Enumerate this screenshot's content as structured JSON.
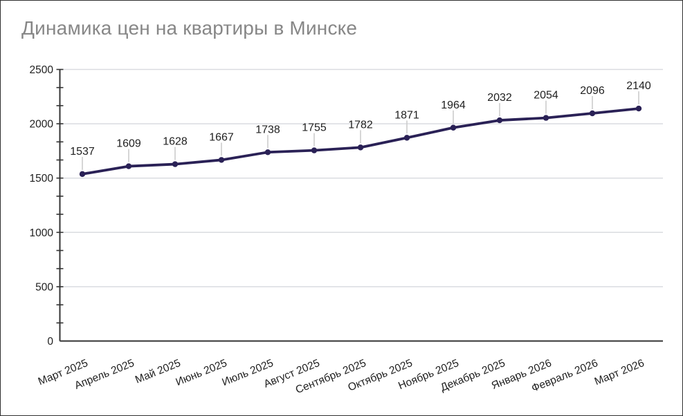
{
  "title": "Динамика цен на квартиры в Минске",
  "colors": {
    "line": "#2a2156",
    "point": "#2a2156",
    "grid": "#dadce0",
    "axis": "#333333",
    "tick": "#333333",
    "axis_label": "#1f1f1f",
    "data_label": "#1f1f1f",
    "leader": "#cccccc",
    "title": "#878787",
    "background": "#ffffff"
  },
  "chart_data": {
    "type": "line",
    "title": "Динамика цен на квартиры в Минске",
    "categories": [
      "Март 2025",
      "Апрель 2025",
      "Май 2025",
      "Июнь 2025",
      "Июль 2025",
      "Август 2025",
      "Сентябрь 2025",
      "Октябрь 2025",
      "Ноябрь 2025",
      "Декабрь 2025",
      "Январь 2026",
      "Февраль 2026",
      "Март 2026"
    ],
    "values": [
      1537,
      1609,
      1628,
      1667,
      1738,
      1755,
      1782,
      1871,
      1964,
      2032,
      2054,
      2096,
      2140
    ],
    "data_labels": [
      "1537",
      "1609",
      "1628",
      "1667",
      "1738",
      "1755",
      "1782",
      "1871",
      "1964",
      "2032",
      "2054",
      "2096",
      "2140"
    ],
    "xlabel": "",
    "ylabel": "",
    "ylim": [
      0,
      2500
    ],
    "yticks": [
      0,
      500,
      1000,
      1500,
      2000,
      2500
    ],
    "ytick_labels": [
      "0",
      "500",
      "1000",
      "1500",
      "2000",
      "2500"
    ],
    "minor_tick_divisions": 3,
    "grid": true,
    "legend": "none",
    "x_label_rotation_deg": -22
  }
}
